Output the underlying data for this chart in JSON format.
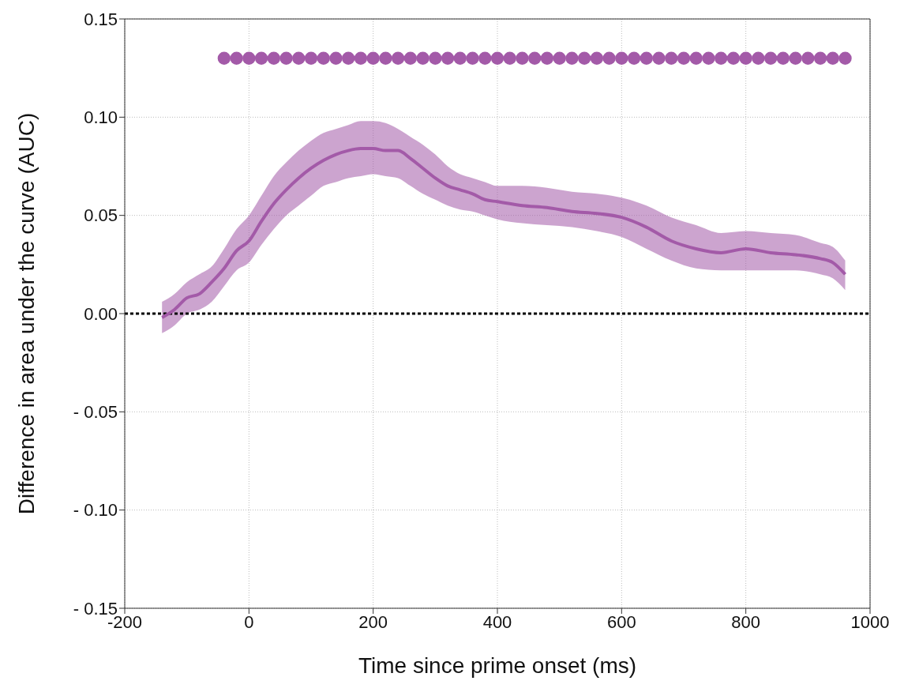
{
  "chart_data": {
    "type": "line",
    "xlabel": "Time since prime onset (ms)",
    "ylabel": "Difference in area under the curve (AUC)",
    "xlim": [
      -200,
      1000
    ],
    "xticks": [
      -200,
      0,
      200,
      400,
      600,
      800,
      1000
    ],
    "ylim": [
      -0.15,
      0.15
    ],
    "yticks": [
      {
        "value": -0.15,
        "label": "- 0.15"
      },
      {
        "value": -0.1,
        "label": "- 0.10"
      },
      {
        "value": -0.05,
        "label": "- 0.05"
      },
      {
        "value": 0,
        "label": "0.00"
      },
      {
        "value": 0.05,
        "label": "0.05"
      },
      {
        "value": 0.1,
        "label": "0.10"
      },
      {
        "value": 0.15,
        "label": "0.15"
      }
    ],
    "grid": true,
    "ref_lines": [
      {
        "axis": "y",
        "value": 0,
        "color": "#000000",
        "line_style": "dotted"
      }
    ],
    "series": [
      {
        "color": "#a35aa8",
        "line_style": "solid",
        "x": [
          -140,
          -120,
          -100,
          -80,
          -60,
          -40,
          -20,
          0,
          20,
          40,
          60,
          80,
          100,
          120,
          140,
          160,
          180,
          200,
          220,
          240,
          260,
          280,
          300,
          320,
          340,
          360,
          380,
          400,
          440,
          480,
          520,
          560,
          600,
          640,
          680,
          720,
          760,
          800,
          840,
          880,
          920,
          940,
          960
        ],
        "values": [
          -0.002,
          0.002,
          0.008,
          0.01,
          0.016,
          0.023,
          0.032,
          0.037,
          0.047,
          0.056,
          0.063,
          0.069,
          0.074,
          0.078,
          0.081,
          0.083,
          0.084,
          0.084,
          0.083,
          0.083,
          0.079,
          0.074,
          0.069,
          0.065,
          0.063,
          0.061,
          0.058,
          0.057,
          0.055,
          0.054,
          0.052,
          0.051,
          0.049,
          0.044,
          0.037,
          0.033,
          0.031,
          0.033,
          0.031,
          0.03,
          0.028,
          0.026,
          0.02
        ],
        "lower": [
          -0.01,
          -0.006,
          0.0,
          0.002,
          0.006,
          0.014,
          0.022,
          0.026,
          0.035,
          0.043,
          0.05,
          0.055,
          0.06,
          0.065,
          0.067,
          0.069,
          0.07,
          0.071,
          0.07,
          0.069,
          0.065,
          0.061,
          0.058,
          0.055,
          0.053,
          0.052,
          0.05,
          0.048,
          0.046,
          0.045,
          0.044,
          0.042,
          0.039,
          0.033,
          0.027,
          0.023,
          0.022,
          0.022,
          0.022,
          0.022,
          0.02,
          0.018,
          0.012
        ],
        "upper": [
          0.006,
          0.01,
          0.016,
          0.02,
          0.024,
          0.033,
          0.043,
          0.05,
          0.06,
          0.07,
          0.077,
          0.083,
          0.088,
          0.092,
          0.094,
          0.096,
          0.098,
          0.098,
          0.097,
          0.094,
          0.09,
          0.086,
          0.081,
          0.075,
          0.071,
          0.069,
          0.067,
          0.065,
          0.065,
          0.064,
          0.062,
          0.061,
          0.059,
          0.055,
          0.049,
          0.045,
          0.041,
          0.042,
          0.041,
          0.04,
          0.036,
          0.034,
          0.027
        ]
      },
      {
        "type": "scatter",
        "color": "#a35aa8",
        "marker": "circle",
        "x": [
          -40,
          -20,
          0,
          20,
          40,
          60,
          80,
          100,
          120,
          140,
          160,
          180,
          200,
          220,
          240,
          260,
          280,
          300,
          320,
          340,
          360,
          380,
          400,
          420,
          440,
          460,
          480,
          500,
          520,
          540,
          560,
          580,
          600,
          620,
          640,
          660,
          680,
          700,
          720,
          740,
          760,
          780,
          800,
          820,
          840,
          860,
          880,
          900,
          920,
          940,
          960
        ],
        "values": [
          0.13,
          0.13,
          0.13,
          0.13,
          0.13,
          0.13,
          0.13,
          0.13,
          0.13,
          0.13,
          0.13,
          0.13,
          0.13,
          0.13,
          0.13,
          0.13,
          0.13,
          0.13,
          0.13,
          0.13,
          0.13,
          0.13,
          0.13,
          0.13,
          0.13,
          0.13,
          0.13,
          0.13,
          0.13,
          0.13,
          0.13,
          0.13,
          0.13,
          0.13,
          0.13,
          0.13,
          0.13,
          0.13,
          0.13,
          0.13,
          0.13,
          0.13,
          0.13,
          0.13,
          0.13,
          0.13,
          0.13,
          0.13,
          0.13,
          0.13,
          0.13
        ]
      }
    ]
  }
}
